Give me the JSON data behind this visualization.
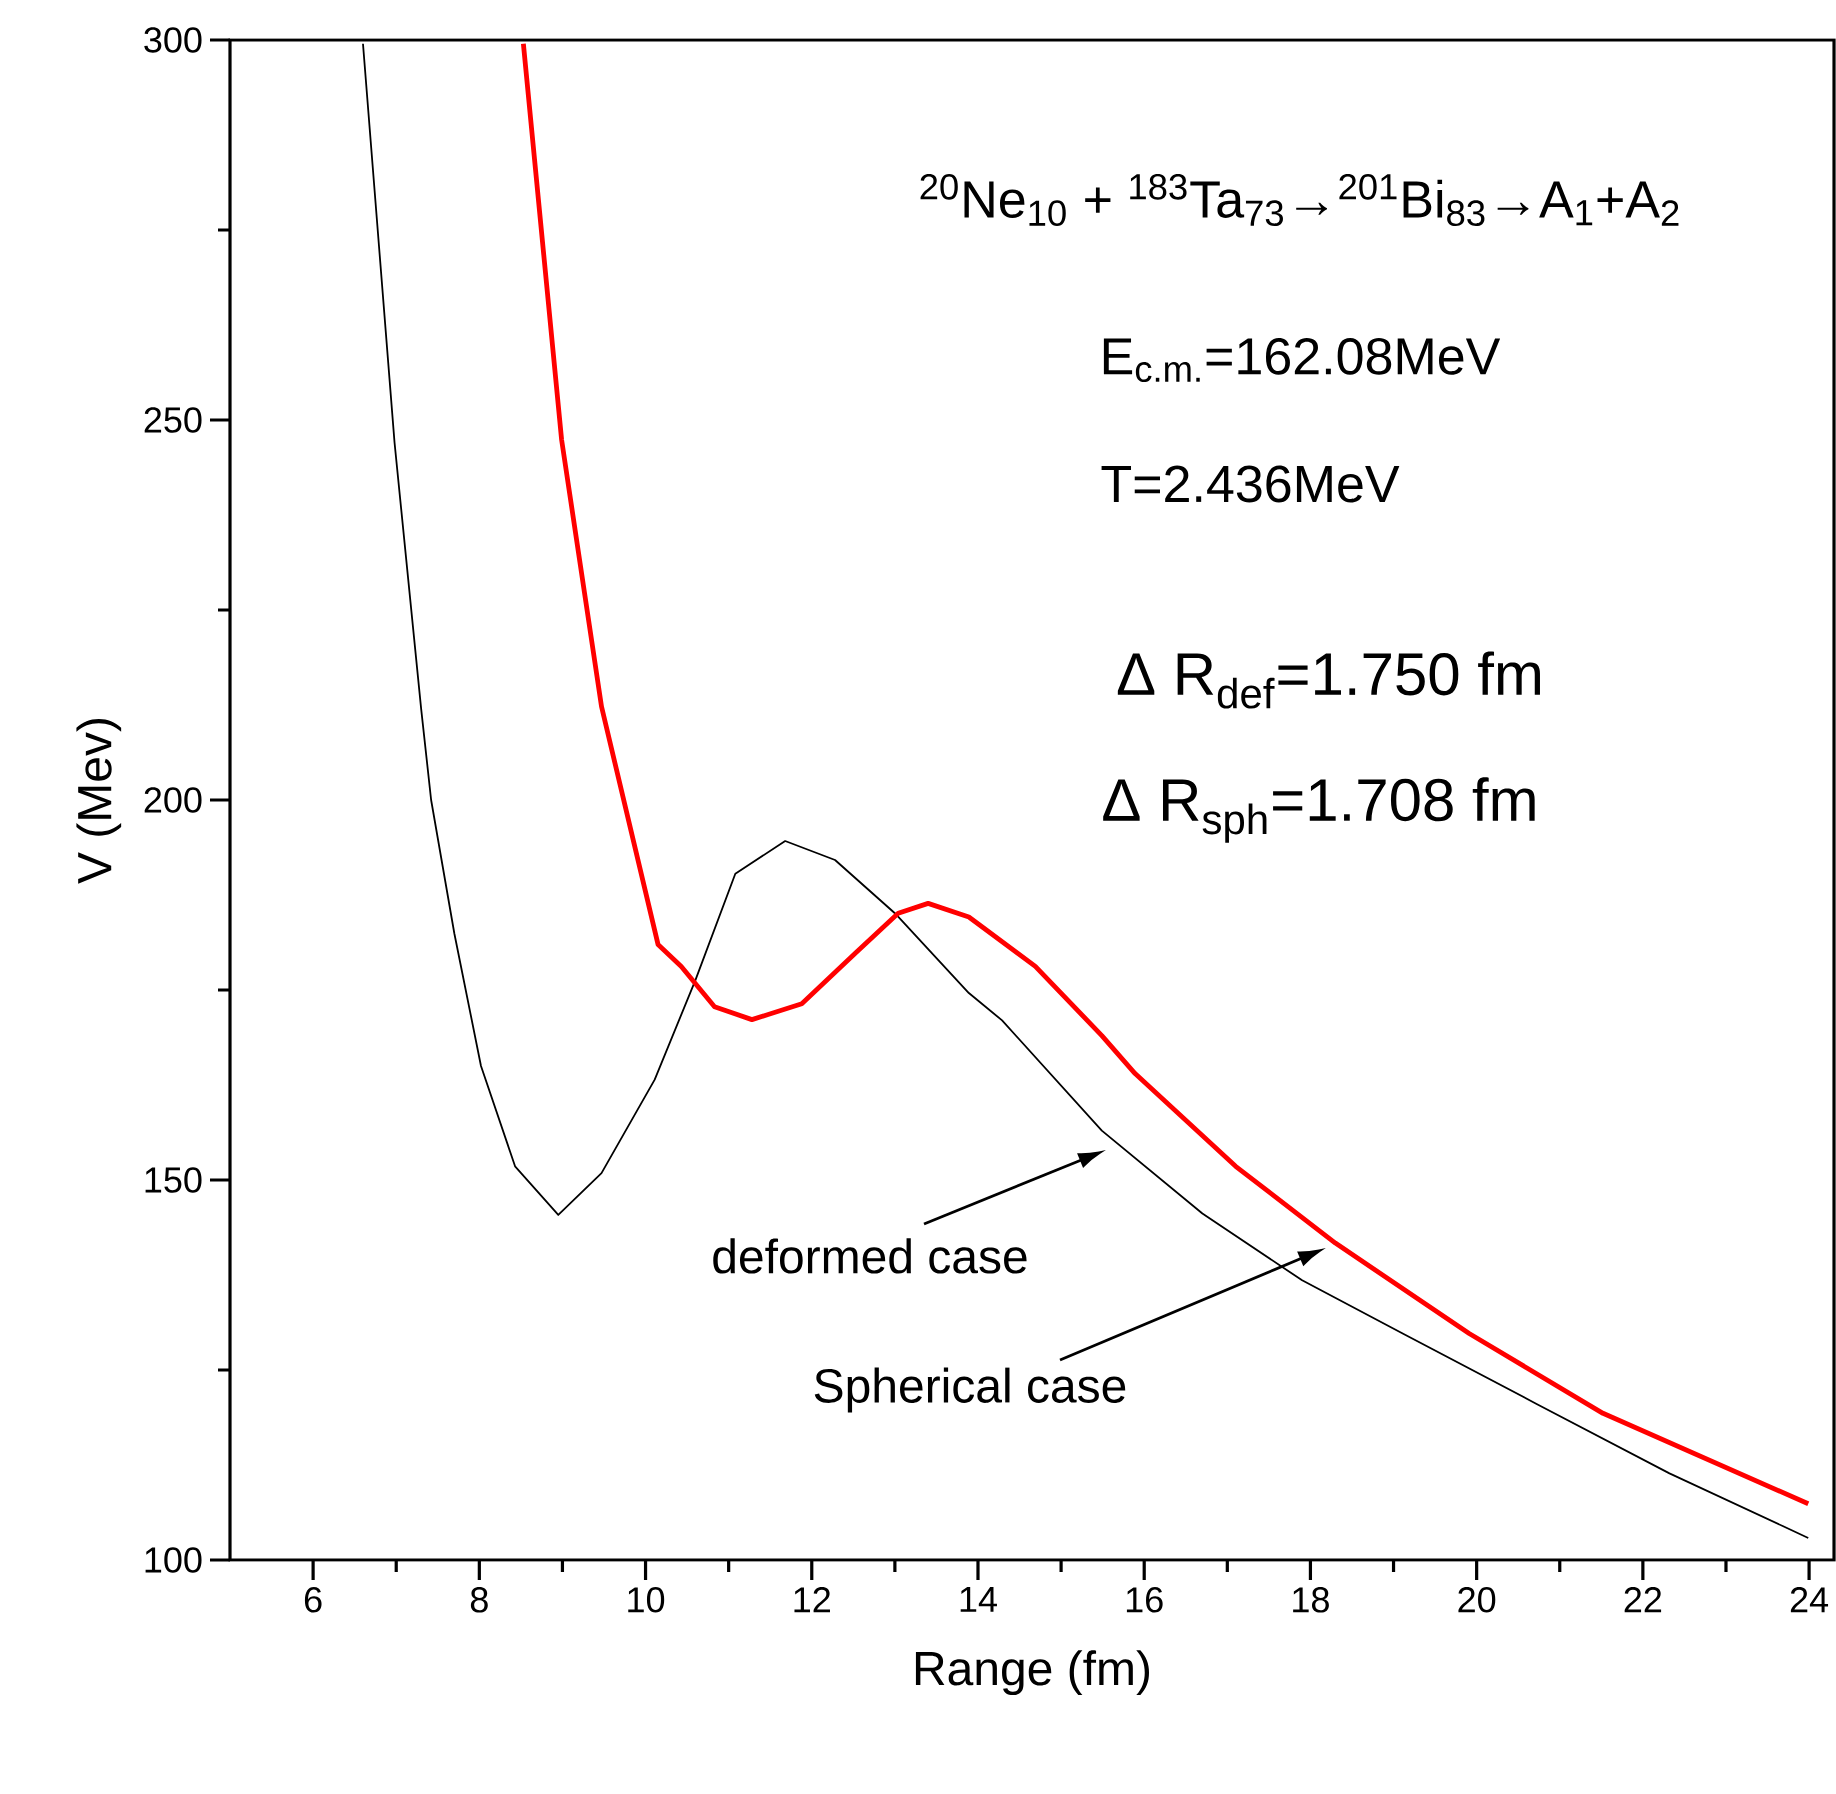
{
  "chart_data": {
    "type": "line",
    "xlabel": "Range (fm)",
    "ylabel": "V (Mev)",
    "xlim": [
      5,
      24.3
    ],
    "ylim": [
      100,
      300
    ],
    "xticks": [
      6,
      8,
      10,
      12,
      14,
      16,
      18,
      20,
      22,
      24
    ],
    "yticks": [
      100,
      150,
      200,
      250,
      300
    ],
    "grid": false,
    "marker": "none",
    "line_style": "solid",
    "series": [
      {
        "color": "#000000",
        "x": [
          6.6,
          6.98,
          7.3,
          7.42,
          7.7,
          8.02,
          8.43,
          8.95,
          9.47,
          10.11,
          10.6,
          11.08,
          11.68,
          12.28,
          13.0,
          13.89,
          14.29,
          15.49,
          16.7,
          17.9,
          19.11,
          20.71,
          22.32,
          23.99
        ],
        "values": [
          299.5,
          247,
          212,
          200,
          182.4,
          165,
          151.8,
          145.4,
          150.9,
          163.2,
          176.3,
          190.3,
          194.6,
          192.1,
          185.1,
          174.6,
          171,
          156.5,
          145.6,
          136.8,
          129.8,
          120.6,
          111.4,
          102.9
        ]
      },
      {
        "color": "#ff0000",
        "x": [
          8.53,
          8.99,
          9.47,
          10.15,
          10.43,
          10.83,
          11.28,
          11.88,
          12.52,
          13.04,
          13.4,
          13.89,
          14.69,
          15.49,
          15.89,
          17.1,
          18.3,
          19.91,
          21.52,
          23.99
        ],
        "values": [
          299.5,
          247.4,
          212.3,
          181,
          178.1,
          172.8,
          171.1,
          173.2,
          179.8,
          185.1,
          186.4,
          184.6,
          178.1,
          169,
          164,
          151.8,
          141.7,
          129.8,
          119.3,
          107.4
        ]
      }
    ],
    "annotations": [
      "$^{20}$Ne$_{10}$ + $^{183}$Ta$_{73}$→$^{201}$Bi$_{83}$→A$_{1}$+A$_{2}$",
      "E$_{c.m.}$=162.08MeV",
      "T=2.436MeV",
      "Δ R$_{def}$=1.750 fm",
      "Δ R$_{sph}$=1.708 fm",
      "deformed case",
      "Spherical case"
    ]
  }
}
